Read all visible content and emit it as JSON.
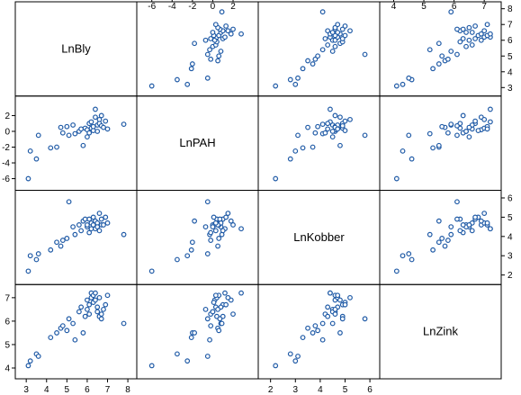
{
  "chart_data": {
    "type": "scatter",
    "variables": [
      "LnBly",
      "LnPAH",
      "LnKobber",
      "LnZink"
    ],
    "axis_ticks": {
      "LnBly": [
        3,
        4,
        5,
        6,
        7,
        8
      ],
      "LnPAH": [
        -6,
        -4,
        -2,
        0,
        2
      ],
      "LnKobber": [
        2,
        3,
        4,
        5,
        6
      ],
      "LnZink": [
        4,
        5,
        6,
        7
      ]
    },
    "axis_ranges": {
      "LnBly": [
        2.7,
        8.2
      ],
      "LnPAH": [
        -7,
        4
      ],
      "LnKobber": [
        1.7,
        6.2
      ],
      "LnZink": [
        3.7,
        7.4
      ]
    },
    "marker_color": "#1f5aa6",
    "observations": [
      {
        "LnBly": 3.1,
        "LnPAH": -6.0,
        "LnKobber": 2.2,
        "LnZink": 4.1
      },
      {
        "LnBly": 3.2,
        "LnPAH": -2.5,
        "LnKobber": 3.0,
        "LnZink": 4.3
      },
      {
        "LnBly": 3.5,
        "LnPAH": -3.5,
        "LnKobber": 2.8,
        "LnZink": 4.6
      },
      {
        "LnBly": 3.6,
        "LnPAH": -0.5,
        "LnKobber": 3.1,
        "LnZink": 4.5
      },
      {
        "LnBly": 4.2,
        "LnPAH": -2.1,
        "LnKobber": 3.3,
        "LnZink": 5.3
      },
      {
        "LnBly": 4.5,
        "LnPAH": -2.0,
        "LnKobber": 3.7,
        "LnZink": 5.5
      },
      {
        "LnBly": 4.7,
        "LnPAH": 0.5,
        "LnKobber": 3.5,
        "LnZink": 5.7
      },
      {
        "LnBly": 4.8,
        "LnPAH": -0.2,
        "LnKobber": 3.8,
        "LnZink": 5.8
      },
      {
        "LnBly": 5.0,
        "LnPAH": 0.6,
        "LnKobber": 3.9,
        "LnZink": 5.6
      },
      {
        "LnBly": 5.1,
        "LnPAH": -0.5,
        "LnKobber": 5.8,
        "LnZink": 6.1
      },
      {
        "LnBly": 5.3,
        "LnPAH": 0.8,
        "LnKobber": 4.5,
        "LnZink": 5.9
      },
      {
        "LnBly": 5.4,
        "LnPAH": -0.3,
        "LnKobber": 4.1,
        "LnZink": 5.2
      },
      {
        "LnBly": 5.6,
        "LnPAH": 0.0,
        "LnKobber": 4.6,
        "LnZink": 6.4
      },
      {
        "LnBly": 5.7,
        "LnPAH": 0.3,
        "LnKobber": 4.3,
        "LnZink": 6.6
      },
      {
        "LnBly": 5.8,
        "LnPAH": -1.8,
        "LnKobber": 4.8,
        "LnZink": 5.5
      },
      {
        "LnBly": 5.9,
        "LnPAH": 0.4,
        "LnKobber": 4.9,
        "LnZink": 6.2
      },
      {
        "LnBly": 6.0,
        "LnPAH": -0.7,
        "LnKobber": 4.5,
        "LnZink": 6.5
      },
      {
        "LnBly": 6.0,
        "LnPAH": 0.2,
        "LnKobber": 4.6,
        "LnZink": 6.9
      },
      {
        "LnBly": 6.1,
        "LnPAH": 1.0,
        "LnKobber": 4.9,
        "LnZink": 6.7
      },
      {
        "LnBly": 6.1,
        "LnPAH": -0.2,
        "LnKobber": 4.2,
        "LnZink": 6.3
      },
      {
        "LnBly": 6.2,
        "LnPAH": 0.4,
        "LnKobber": 4.7,
        "LnZink": 7.0
      },
      {
        "LnBly": 6.2,
        "LnPAH": 1.2,
        "LnKobber": 4.4,
        "LnZink": 7.2
      },
      {
        "LnBly": 6.3,
        "LnPAH": 0.1,
        "LnKobber": 5.0,
        "LnZink": 6.8
      },
      {
        "LnBly": 6.3,
        "LnPAH": 0.6,
        "LnKobber": 4.6,
        "LnZink": 7.1
      },
      {
        "LnBly": 6.4,
        "LnPAH": 1.8,
        "LnKobber": 4.8,
        "LnZink": 6.9
      },
      {
        "LnBly": 6.4,
        "LnPAH": 2.8,
        "LnKobber": 4.4,
        "LnZink": 7.2
      },
      {
        "LnBly": 6.5,
        "LnPAH": 0.8,
        "LnKobber": 4.7,
        "LnZink": 6.6
      },
      {
        "LnBly": 6.5,
        "LnPAH": 0.0,
        "LnKobber": 4.5,
        "LnZink": 6.4
      },
      {
        "LnBly": 6.6,
        "LnPAH": 1.5,
        "LnKobber": 5.2,
        "LnZink": 7.0
      },
      {
        "LnBly": 6.6,
        "LnPAH": 1.0,
        "LnKobber": 4.3,
        "LnZink": 6.2
      },
      {
        "LnBly": 6.7,
        "LnPAH": 0.7,
        "LnKobber": 4.9,
        "LnZink": 6.1
      },
      {
        "LnBly": 6.7,
        "LnPAH": 2.0,
        "LnKobber": 4.6,
        "LnZink": 6.3
      },
      {
        "LnBly": 6.8,
        "LnPAH": 0.5,
        "LnKobber": 4.6,
        "LnZink": 6.5
      },
      {
        "LnBly": 6.9,
        "LnPAH": 1.3,
        "LnKobber": 5.0,
        "LnZink": 6.7
      },
      {
        "LnBly": 7.0,
        "LnPAH": 0.3,
        "LnKobber": 4.7,
        "LnZink": 7.1
      },
      {
        "LnBly": 7.8,
        "LnPAH": 0.9,
        "LnKobber": 4.1,
        "LnZink": 5.9
      }
    ]
  }
}
